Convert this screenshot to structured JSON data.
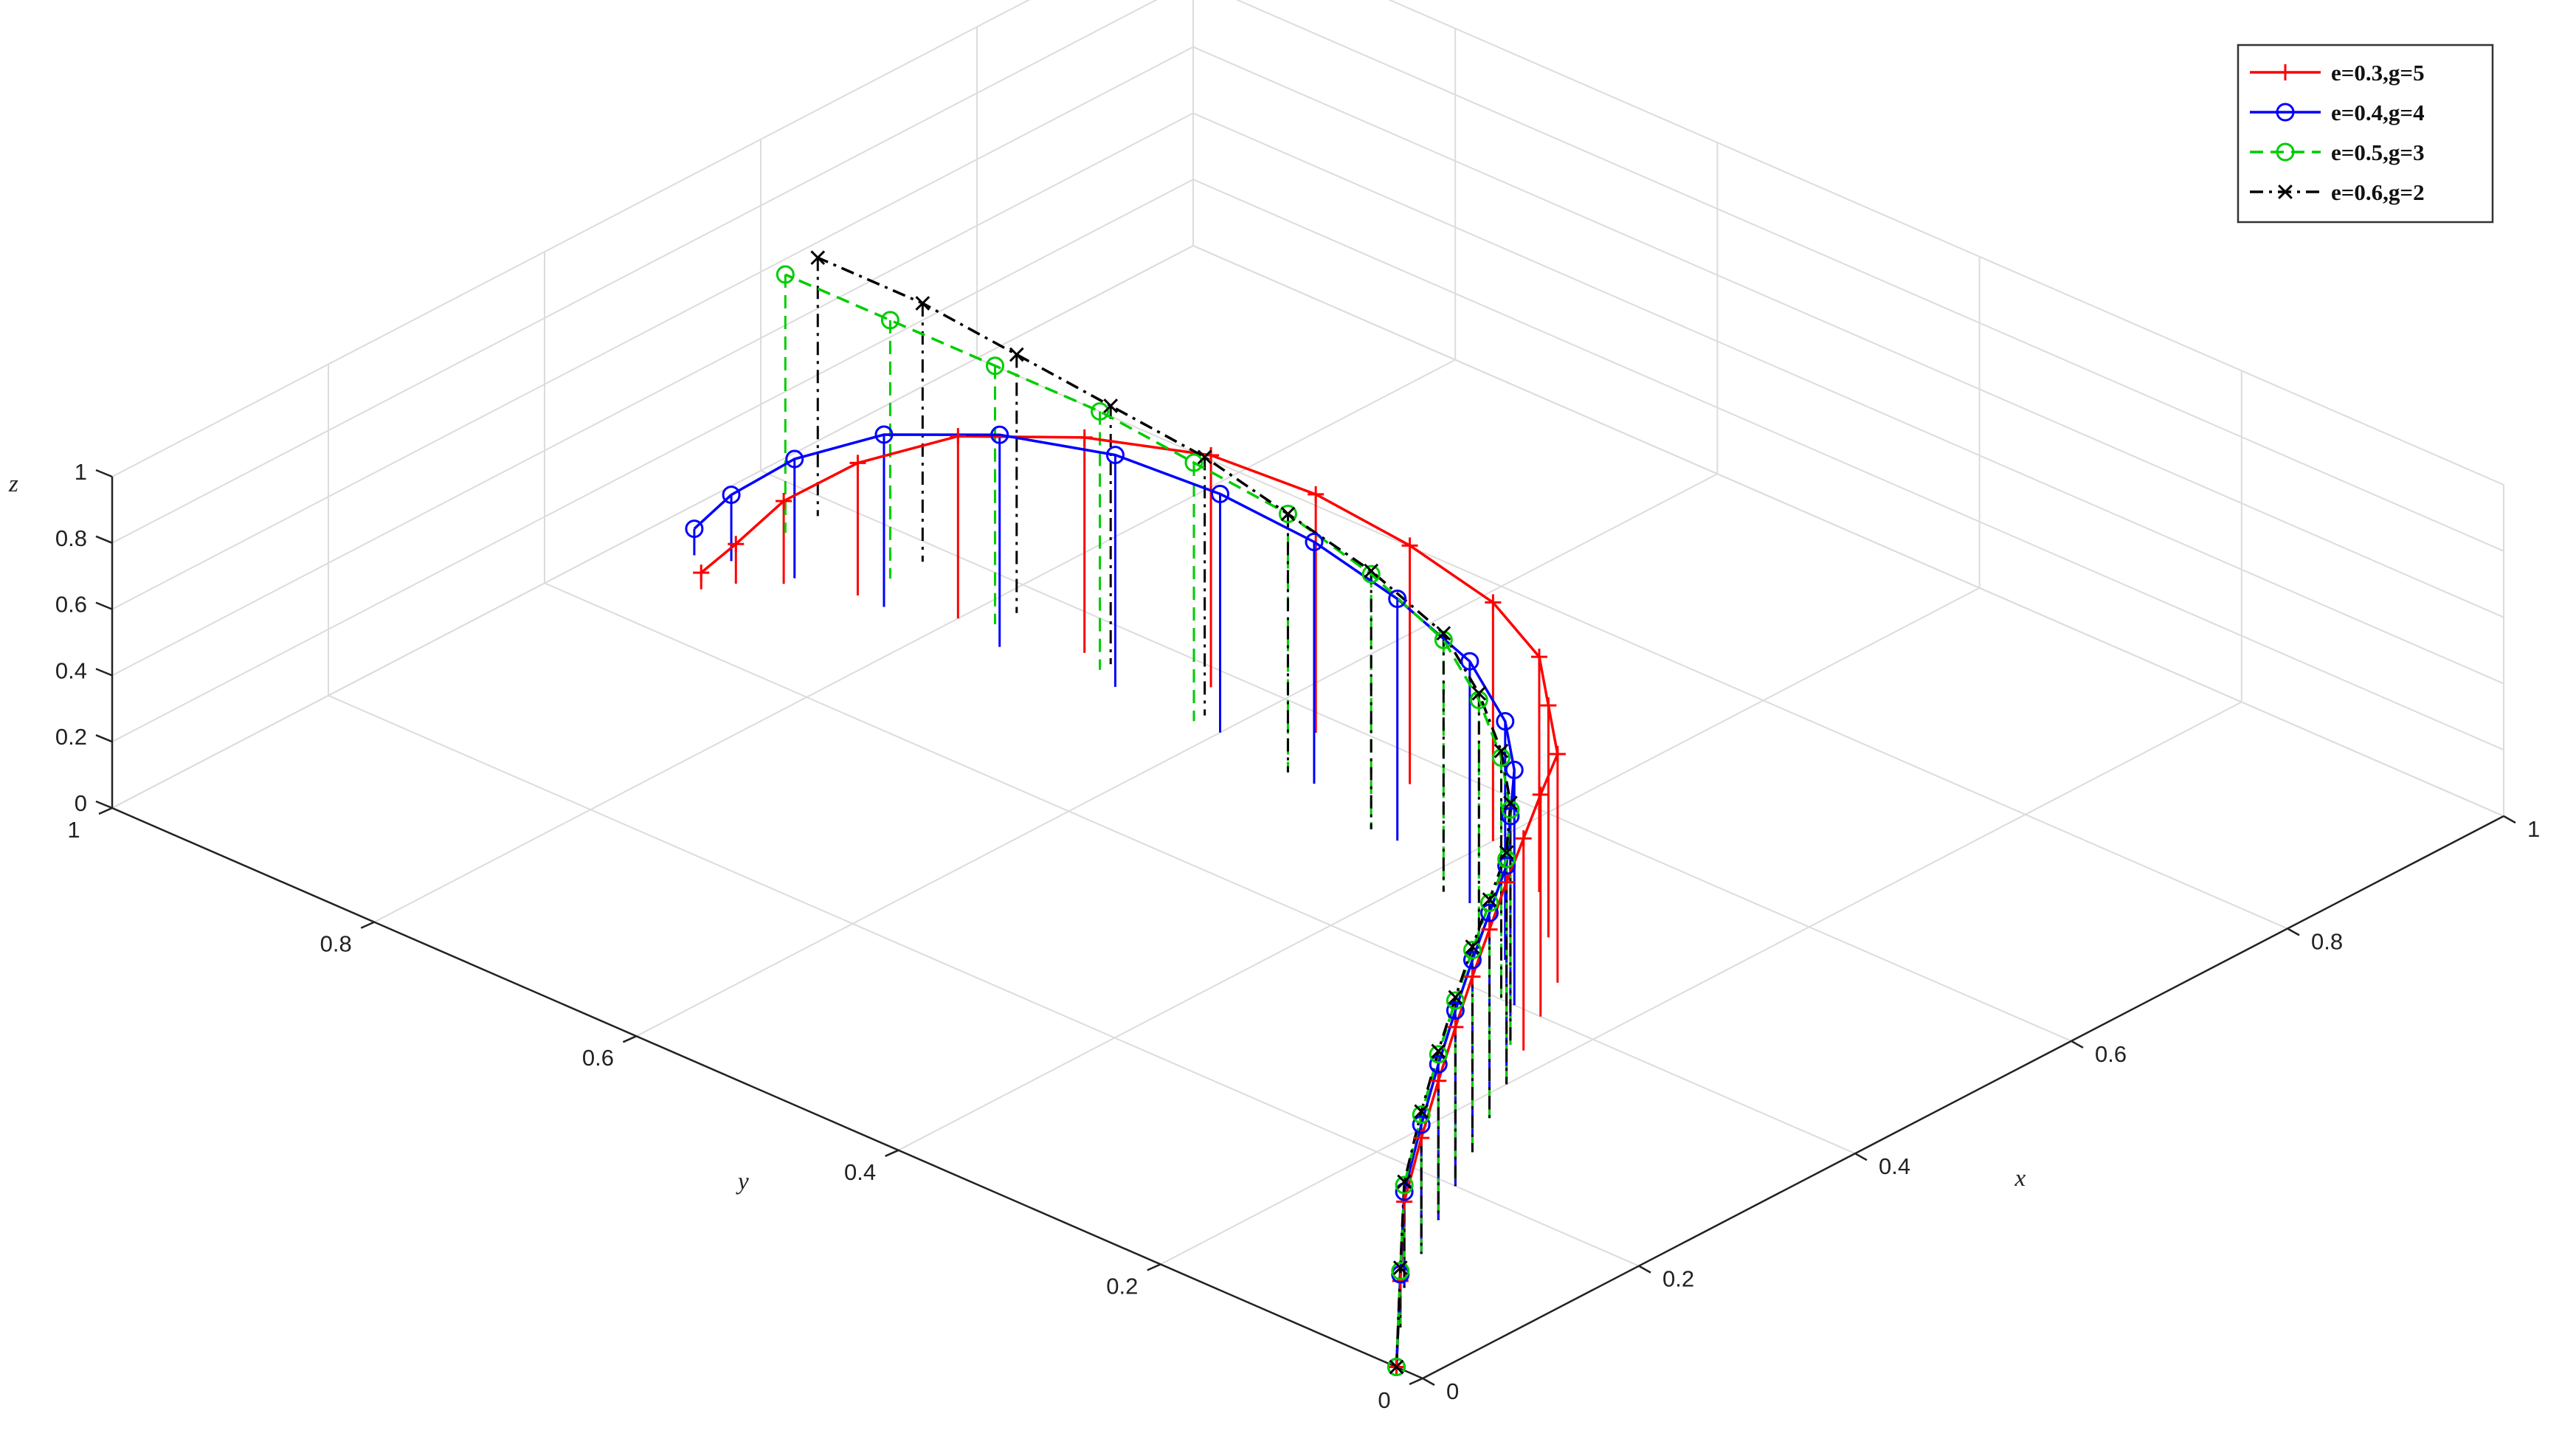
{
  "chart_data": [
    {
      "type": "line",
      "title": "",
      "projection": "3d",
      "xlabel": "x",
      "ylabel": "y",
      "zlabel": "z",
      "xlim": [
        0,
        1
      ],
      "ylim": [
        0,
        1
      ],
      "zlim": [
        0,
        1
      ],
      "x_ticks": [
        "0",
        "0.2",
        "0.4",
        "0.6",
        "0.8",
        "1"
      ],
      "y_ticks": [
        "0",
        "0.2",
        "0.4",
        "0.6",
        "0.8",
        "1"
      ],
      "z_ticks": [
        "0",
        "0.2",
        "0.4",
        "0.6",
        "0.8",
        "1"
      ],
      "grid": true,
      "legend_position": "top-right",
      "series": [
        {
          "name": "e=0.3,g=5",
          "color": "#ff0000",
          "line_style": "solid",
          "marker": "plus",
          "points": [
            [
              0.0,
              0.02,
              0.0
            ],
            [
              0.04,
              0.05,
              0.14
            ],
            [
              0.08,
              0.08,
              0.26
            ],
            [
              0.12,
              0.1,
              0.35
            ],
            [
              0.16,
              0.12,
              0.42
            ],
            [
              0.2,
              0.14,
              0.48
            ],
            [
              0.24,
              0.16,
              0.53
            ],
            [
              0.28,
              0.18,
              0.57
            ],
            [
              0.32,
              0.2,
              0.61
            ],
            [
              0.36,
              0.22,
              0.64
            ],
            [
              0.4,
              0.24,
              0.67
            ],
            [
              0.44,
              0.26,
              0.69
            ],
            [
              0.48,
              0.3,
              0.7
            ],
            [
              0.52,
              0.34,
              0.71
            ],
            [
              0.55,
              0.4,
              0.72
            ],
            [
              0.57,
              0.48,
              0.72
            ],
            [
              0.58,
              0.56,
              0.72
            ],
            [
              0.58,
              0.64,
              0.7
            ],
            [
              0.56,
              0.72,
              0.65
            ],
            [
              0.54,
              0.8,
              0.55
            ],
            [
              0.52,
              0.86,
              0.4
            ],
            [
              0.5,
              0.9,
              0.25
            ],
            [
              0.48,
              0.92,
              0.12
            ],
            [
              0.46,
              0.93,
              0.05
            ]
          ]
        },
        {
          "name": "e=0.4,g=4",
          "color": "#0000ff",
          "line_style": "solid",
          "marker": "circle",
          "points": [
            [
              0.0,
              0.02,
              0.0
            ],
            [
              0.04,
              0.05,
              0.16
            ],
            [
              0.08,
              0.08,
              0.29
            ],
            [
              0.12,
              0.1,
              0.39
            ],
            [
              0.16,
              0.12,
              0.47
            ],
            [
              0.2,
              0.14,
              0.53
            ],
            [
              0.24,
              0.16,
              0.58
            ],
            [
              0.28,
              0.18,
              0.62
            ],
            [
              0.32,
              0.2,
              0.66
            ],
            [
              0.36,
              0.23,
              0.69
            ],
            [
              0.4,
              0.26,
              0.71
            ],
            [
              0.44,
              0.3,
              0.72
            ],
            [
              0.48,
              0.36,
              0.73
            ],
            [
              0.51,
              0.44,
              0.73
            ],
            [
              0.53,
              0.52,
              0.73
            ],
            [
              0.54,
              0.6,
              0.72
            ],
            [
              0.54,
              0.68,
              0.7
            ],
            [
              0.53,
              0.76,
              0.64
            ],
            [
              0.52,
              0.84,
              0.52
            ],
            [
              0.51,
              0.9,
              0.36
            ],
            [
              0.5,
              0.94,
              0.2
            ],
            [
              0.49,
              0.96,
              0.08
            ]
          ]
        },
        {
          "name": "e=0.5,g=3",
          "color": "#00cc00",
          "line_style": "dashed",
          "marker": "circle",
          "points": [
            [
              0.0,
              0.02,
              0.0
            ],
            [
              0.04,
              0.05,
              0.17
            ],
            [
              0.08,
              0.08,
              0.31
            ],
            [
              0.12,
              0.1,
              0.42
            ],
            [
              0.16,
              0.12,
              0.5
            ],
            [
              0.2,
              0.14,
              0.56
            ],
            [
              0.24,
              0.16,
              0.61
            ],
            [
              0.28,
              0.18,
              0.65
            ],
            [
              0.32,
              0.2,
              0.68
            ],
            [
              0.36,
              0.23,
              0.71
            ],
            [
              0.4,
              0.27,
              0.73
            ],
            [
              0.44,
              0.32,
              0.75
            ],
            [
              0.48,
              0.38,
              0.76
            ],
            [
              0.51,
              0.46,
              0.77
            ],
            [
              0.53,
              0.54,
              0.78
            ],
            [
              0.54,
              0.62,
              0.78
            ],
            [
              0.55,
              0.7,
              0.78
            ],
            [
              0.55,
              0.78,
              0.78
            ],
            [
              0.55,
              0.86,
              0.78
            ],
            [
              0.55,
              0.94,
              0.78
            ]
          ]
        },
        {
          "name": "e=0.6,g=2",
          "color": "#000000",
          "line_style": "dashdot",
          "marker": "x",
          "points": [
            [
              0.0,
              0.02,
              0.0
            ],
            [
              0.04,
              0.05,
              0.18
            ],
            [
              0.08,
              0.08,
              0.32
            ],
            [
              0.12,
              0.1,
              0.43
            ],
            [
              0.16,
              0.12,
              0.51
            ],
            [
              0.2,
              0.14,
              0.57
            ],
            [
              0.24,
              0.16,
              0.62
            ],
            [
              0.28,
              0.18,
              0.66
            ],
            [
              0.32,
              0.2,
              0.7
            ],
            [
              0.36,
              0.23,
              0.73
            ],
            [
              0.4,
              0.27,
              0.75
            ],
            [
              0.44,
              0.32,
              0.77
            ],
            [
              0.48,
              0.38,
              0.78
            ],
            [
              0.51,
              0.46,
              0.78
            ],
            [
              0.53,
              0.54,
              0.78
            ],
            [
              0.55,
              0.62,
              0.78
            ],
            [
              0.56,
              0.7,
              0.78
            ],
            [
              0.57,
              0.78,
              0.78
            ],
            [
              0.58,
              0.86,
              0.78
            ],
            [
              0.58,
              0.94,
              0.78
            ]
          ]
        }
      ]
    }
  ]
}
